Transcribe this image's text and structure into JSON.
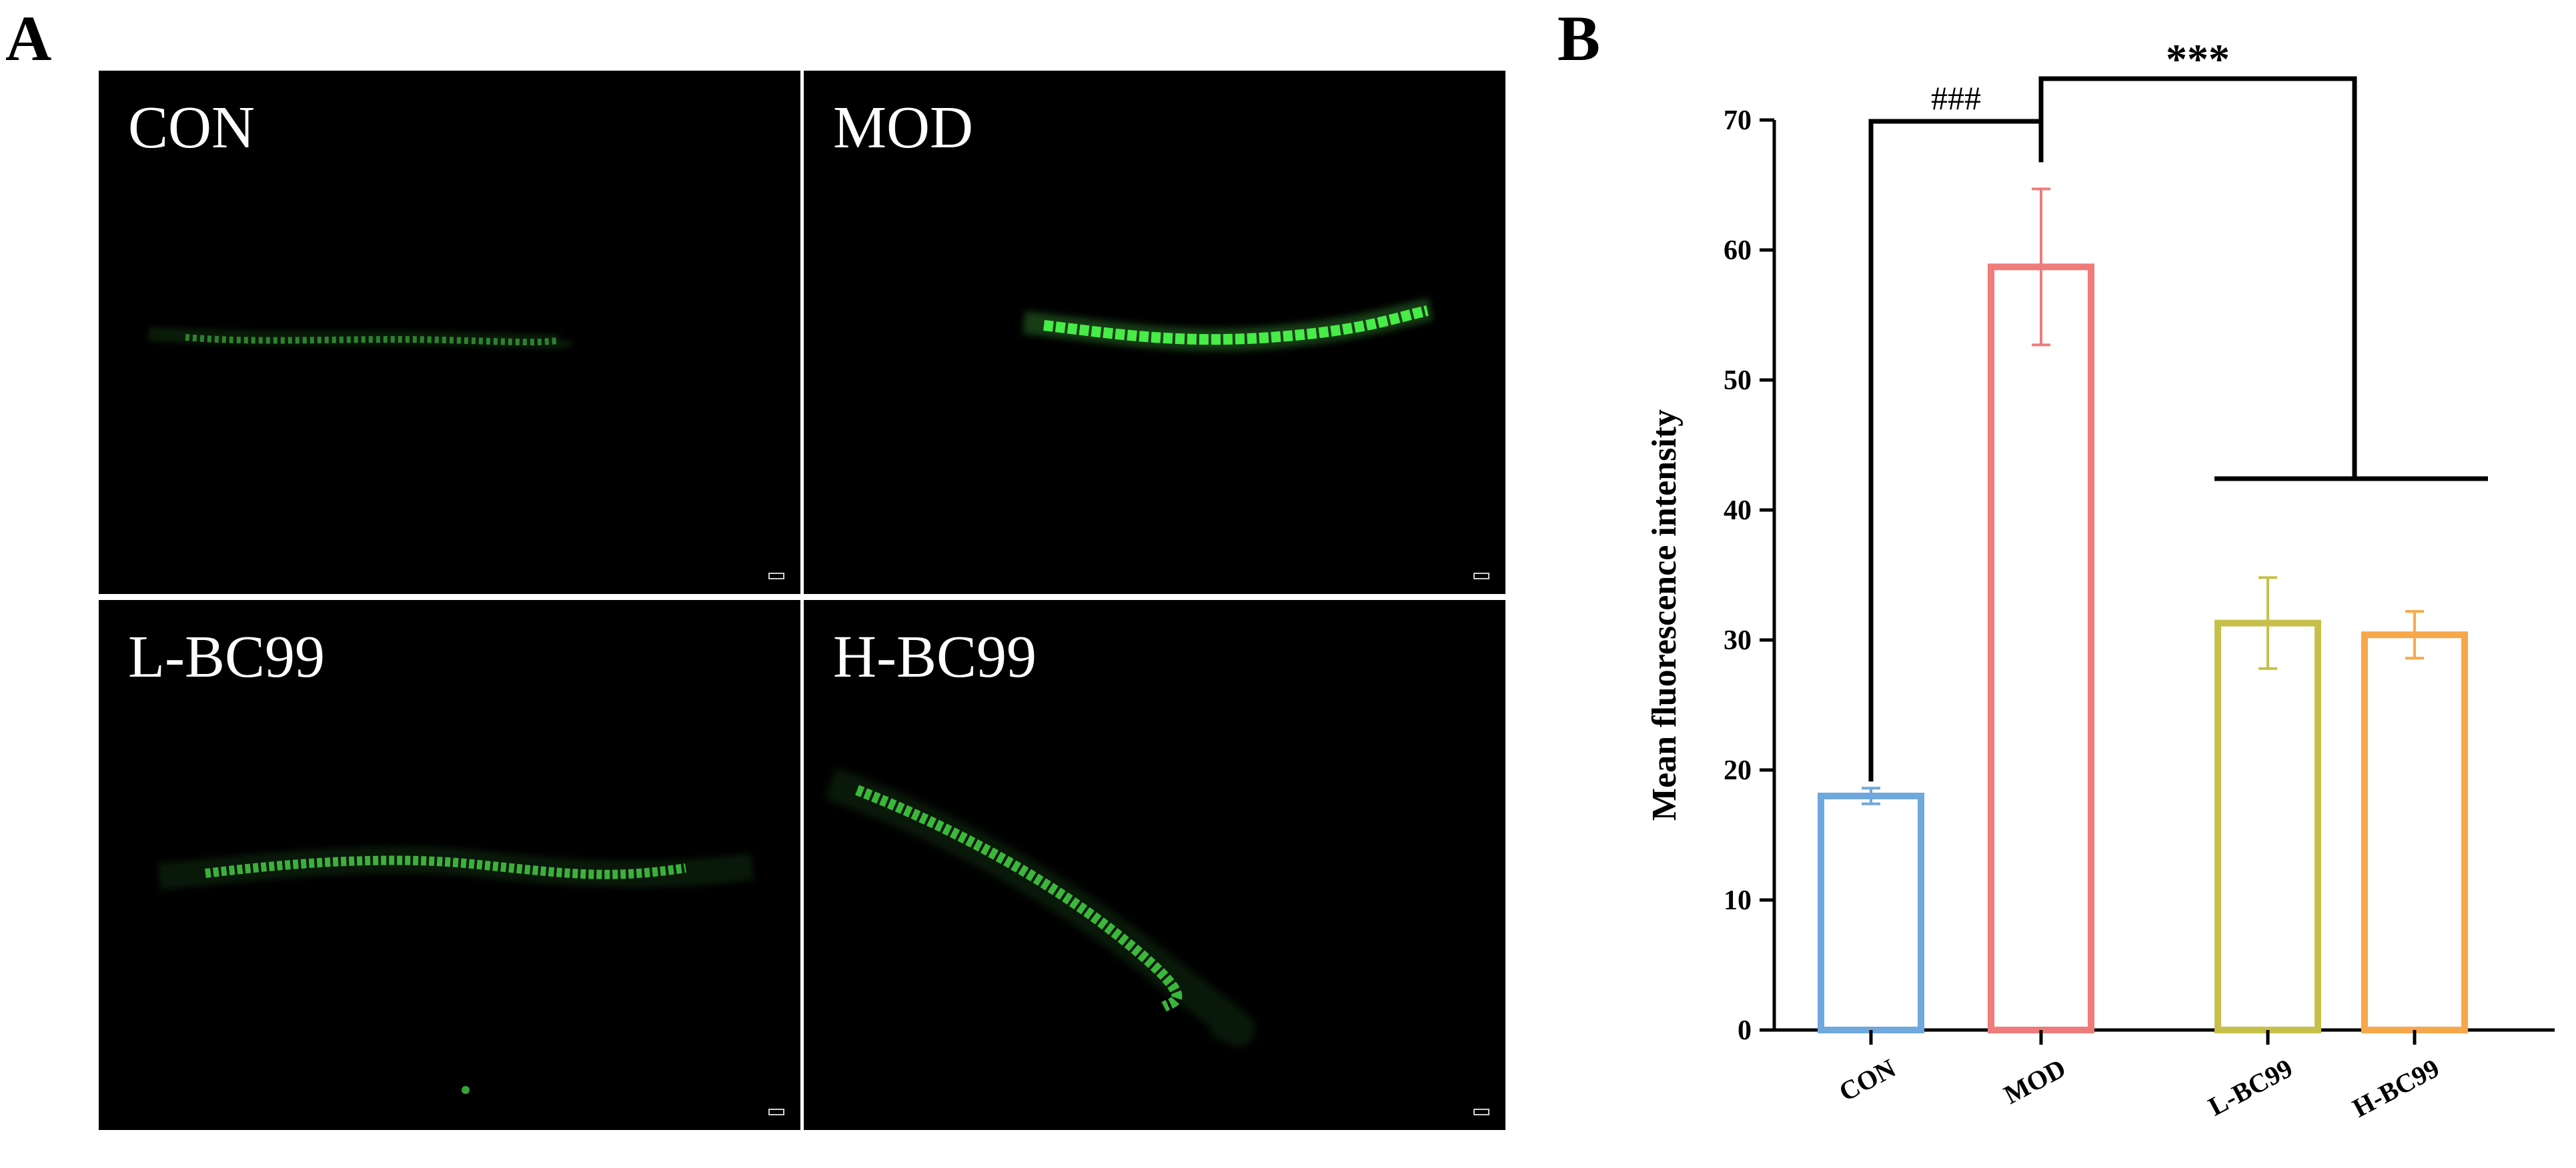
{
  "panel_a": {
    "letter": "A",
    "images": [
      {
        "label": "CON"
      },
      {
        "label": "MOD"
      },
      {
        "label": "L-BC99"
      },
      {
        "label": "H-BC99"
      }
    ]
  },
  "panel_b": {
    "letter": "B"
  },
  "chart_data": {
    "type": "bar",
    "categories": [
      "CON",
      "MOD",
      "L-BC99",
      "H-BC99"
    ],
    "values": [
      18,
      58.7,
      31.3,
      30.4
    ],
    "errors": [
      0.6,
      6.0,
      3.5,
      1.8
    ],
    "bar_colors": [
      "#6fa8dc",
      "#f07b7b",
      "#c6c04a",
      "#f7a84a"
    ],
    "ylabel": "Mean fluorescence intensity",
    "xlabel": "",
    "ylim": [
      0,
      70
    ],
    "yticks": [
      0,
      10,
      20,
      30,
      40,
      50,
      60,
      70
    ],
    "grid": false,
    "bar_fill": "none",
    "annotations": [
      {
        "text": "###",
        "between": [
          "CON",
          "MOD"
        ]
      },
      {
        "text": "***",
        "between": [
          "MOD",
          "L-BC99 / H-BC99"
        ]
      }
    ]
  }
}
